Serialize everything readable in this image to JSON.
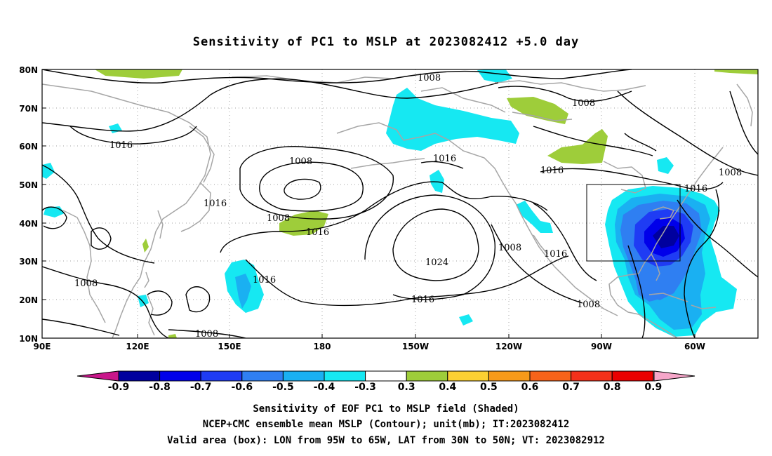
{
  "title": "Sensitivity of PC1 to MSLP at 2023082412 +5.0 day",
  "lat_labels": [
    "80N",
    "70N",
    "60N",
    "50N",
    "40N",
    "30N",
    "20N",
    "10N"
  ],
  "lon_labels": [
    "90E",
    "120E",
    "150E",
    "180",
    "150W",
    "120W",
    "90W",
    "60W"
  ],
  "contour_labels": {
    "c1008_a": "1008",
    "c1008_b": "1008",
    "c1008_c": "1008",
    "c1008_d": "1008",
    "c1008_e": "1008",
    "c1008_f": "1008",
    "c1008_g": "1008",
    "c1008_h": "1008",
    "c1008_i": "1008",
    "c1016_a": "1016",
    "c1016_b": "1016",
    "c1016_c": "1016",
    "c1016_d": "1016",
    "c1016_e": "1016",
    "c1016_f": "1016",
    "c1016_g": "1016",
    "c1016_h": "1016",
    "c1016_i": "1016",
    "c1024": "1024"
  },
  "colorbar": {
    "labels": [
      "-0.9",
      "-0.8",
      "-0.7",
      "-0.6",
      "-0.5",
      "-0.4",
      "-0.3",
      "0.3",
      "0.4",
      "0.5",
      "0.6",
      "0.7",
      "0.8",
      "0.9"
    ],
    "colors": [
      "#00009e",
      "#0000ea",
      "#1f3cf4",
      "#2f7ff2",
      "#1ab0f2",
      "#16e8f2",
      "#ffffff",
      "#9ecd3a",
      "#fbd033",
      "#f79a1a",
      "#f7631a",
      "#f4311a",
      "#ea0000"
    ],
    "low_end_color": "#c8168a",
    "high_end_color": "#f6a6c9"
  },
  "captions": {
    "line1": "Sensitivity of EOF PC1 to MSLP field (Shaded)",
    "line2": "NCEP+CMC ensemble mean MSLP (Contour); unit(mb); IT:2023082412",
    "line3": "Valid area (box): LON from 95W to 65W, LAT from 30N to 50N; VT: 2023082912"
  }
}
